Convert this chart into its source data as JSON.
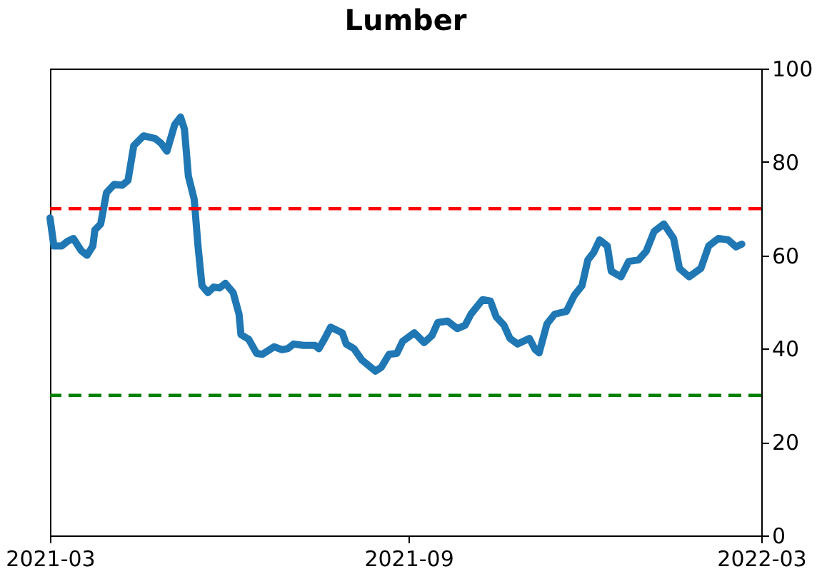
{
  "chart_data": {
    "type": "line",
    "title": "Lumber",
    "x": [
      "2021-03-01",
      "2021-03-03",
      "2021-03-07",
      "2021-03-10",
      "2021-03-13",
      "2021-03-17",
      "2021-03-20",
      "2021-03-23",
      "2021-03-24",
      "2021-03-27",
      "2021-03-30",
      "2021-04-03",
      "2021-04-07",
      "2021-04-10",
      "2021-04-13",
      "2021-04-18",
      "2021-04-24",
      "2021-04-27",
      "2021-04-30",
      "2021-05-04",
      "2021-05-07",
      "2021-05-09",
      "2021-05-11",
      "2021-05-14",
      "2021-05-16",
      "2021-05-18",
      "2021-05-21",
      "2021-05-24",
      "2021-05-27",
      "2021-05-30",
      "2021-06-03",
      "2021-06-06",
      "2021-06-07",
      "2021-06-11",
      "2021-06-15",
      "2021-06-18",
      "2021-06-24",
      "2021-06-28",
      "2021-07-01",
      "2021-07-04",
      "2021-07-09",
      "2021-07-15",
      "2021-07-17",
      "2021-07-20",
      "2021-07-23",
      "2021-07-29",
      "2021-07-31",
      "2021-08-04",
      "2021-08-08",
      "2021-08-15",
      "2021-08-18",
      "2021-08-22",
      "2021-08-26",
      "2021-08-29",
      "2021-09-04",
      "2021-09-09",
      "2021-09-13",
      "2021-09-16",
      "2021-09-21",
      "2021-09-26",
      "2021-09-30",
      "2021-10-03",
      "2021-10-09",
      "2021-10-13",
      "2021-10-16",
      "2021-10-20",
      "2021-10-23",
      "2021-10-27",
      "2021-11-02",
      "2021-11-05",
      "2021-11-07",
      "2021-11-11",
      "2021-11-15",
      "2021-11-21",
      "2021-11-25",
      "2021-11-29",
      "2021-12-02",
      "2021-12-05",
      "2021-12-08",
      "2021-12-12",
      "2021-12-14",
      "2021-12-19",
      "2021-12-23",
      "2021-12-28",
      "2022-01-01",
      "2022-01-05",
      "2022-01-10",
      "2022-01-15",
      "2022-01-18",
      "2022-01-23",
      "2022-01-29",
      "2022-02-02",
      "2022-02-07",
      "2022-02-12",
      "2022-02-16",
      "2022-02-19"
    ],
    "series": [
      {
        "color": "#1f77b4",
        "values": [
          68,
          62,
          62,
          63,
          63.6,
          61,
          60,
          62,
          65.4,
          66.7,
          73.4,
          75.2,
          75,
          76,
          83.5,
          85.6,
          85,
          84,
          82.3,
          88,
          89.6,
          87,
          77,
          72,
          61.8,
          53.5,
          52,
          53.2,
          53,
          54,
          52,
          47.4,
          43,
          42,
          39,
          38.8,
          40.4,
          39.8,
          40,
          41,
          40.7,
          40.7,
          40,
          42.2,
          44.6,
          43.4,
          41,
          40,
          37.6,
          35.2,
          36,
          38.8,
          39,
          41.6,
          43.4,
          41.3,
          42.8,
          45.6,
          45.9,
          44.3,
          45,
          47.4,
          50.5,
          50.2,
          46.8,
          45,
          42.2,
          41,
          42.2,
          39.8,
          39.1,
          45.3,
          47.4,
          48,
          51.4,
          53.5,
          59,
          60.6,
          63.3,
          62,
          56.6,
          55.4,
          58.7,
          59,
          60.9,
          65.1,
          66.7,
          63.6,
          57.2,
          55.4,
          57.2,
          62,
          63.6,
          63.3,
          61.8,
          62.4
        ]
      }
    ],
    "xlim": [
      "2021-03",
      "2022-03"
    ],
    "xticks": [
      "2021-03",
      "2021-09",
      "2022-03"
    ],
    "ylim": [
      0,
      100
    ],
    "yticks": [
      0,
      20,
      40,
      60,
      80,
      100
    ],
    "ref_lines": [
      {
        "axis": "y",
        "value": 70,
        "color": "#ff0000",
        "line_style": "dashed"
      },
      {
        "axis": "y",
        "value": 30,
        "color": "#008000",
        "line_style": "dashed"
      }
    ],
    "grid": false,
    "marker": "none",
    "line_style": "solid"
  }
}
